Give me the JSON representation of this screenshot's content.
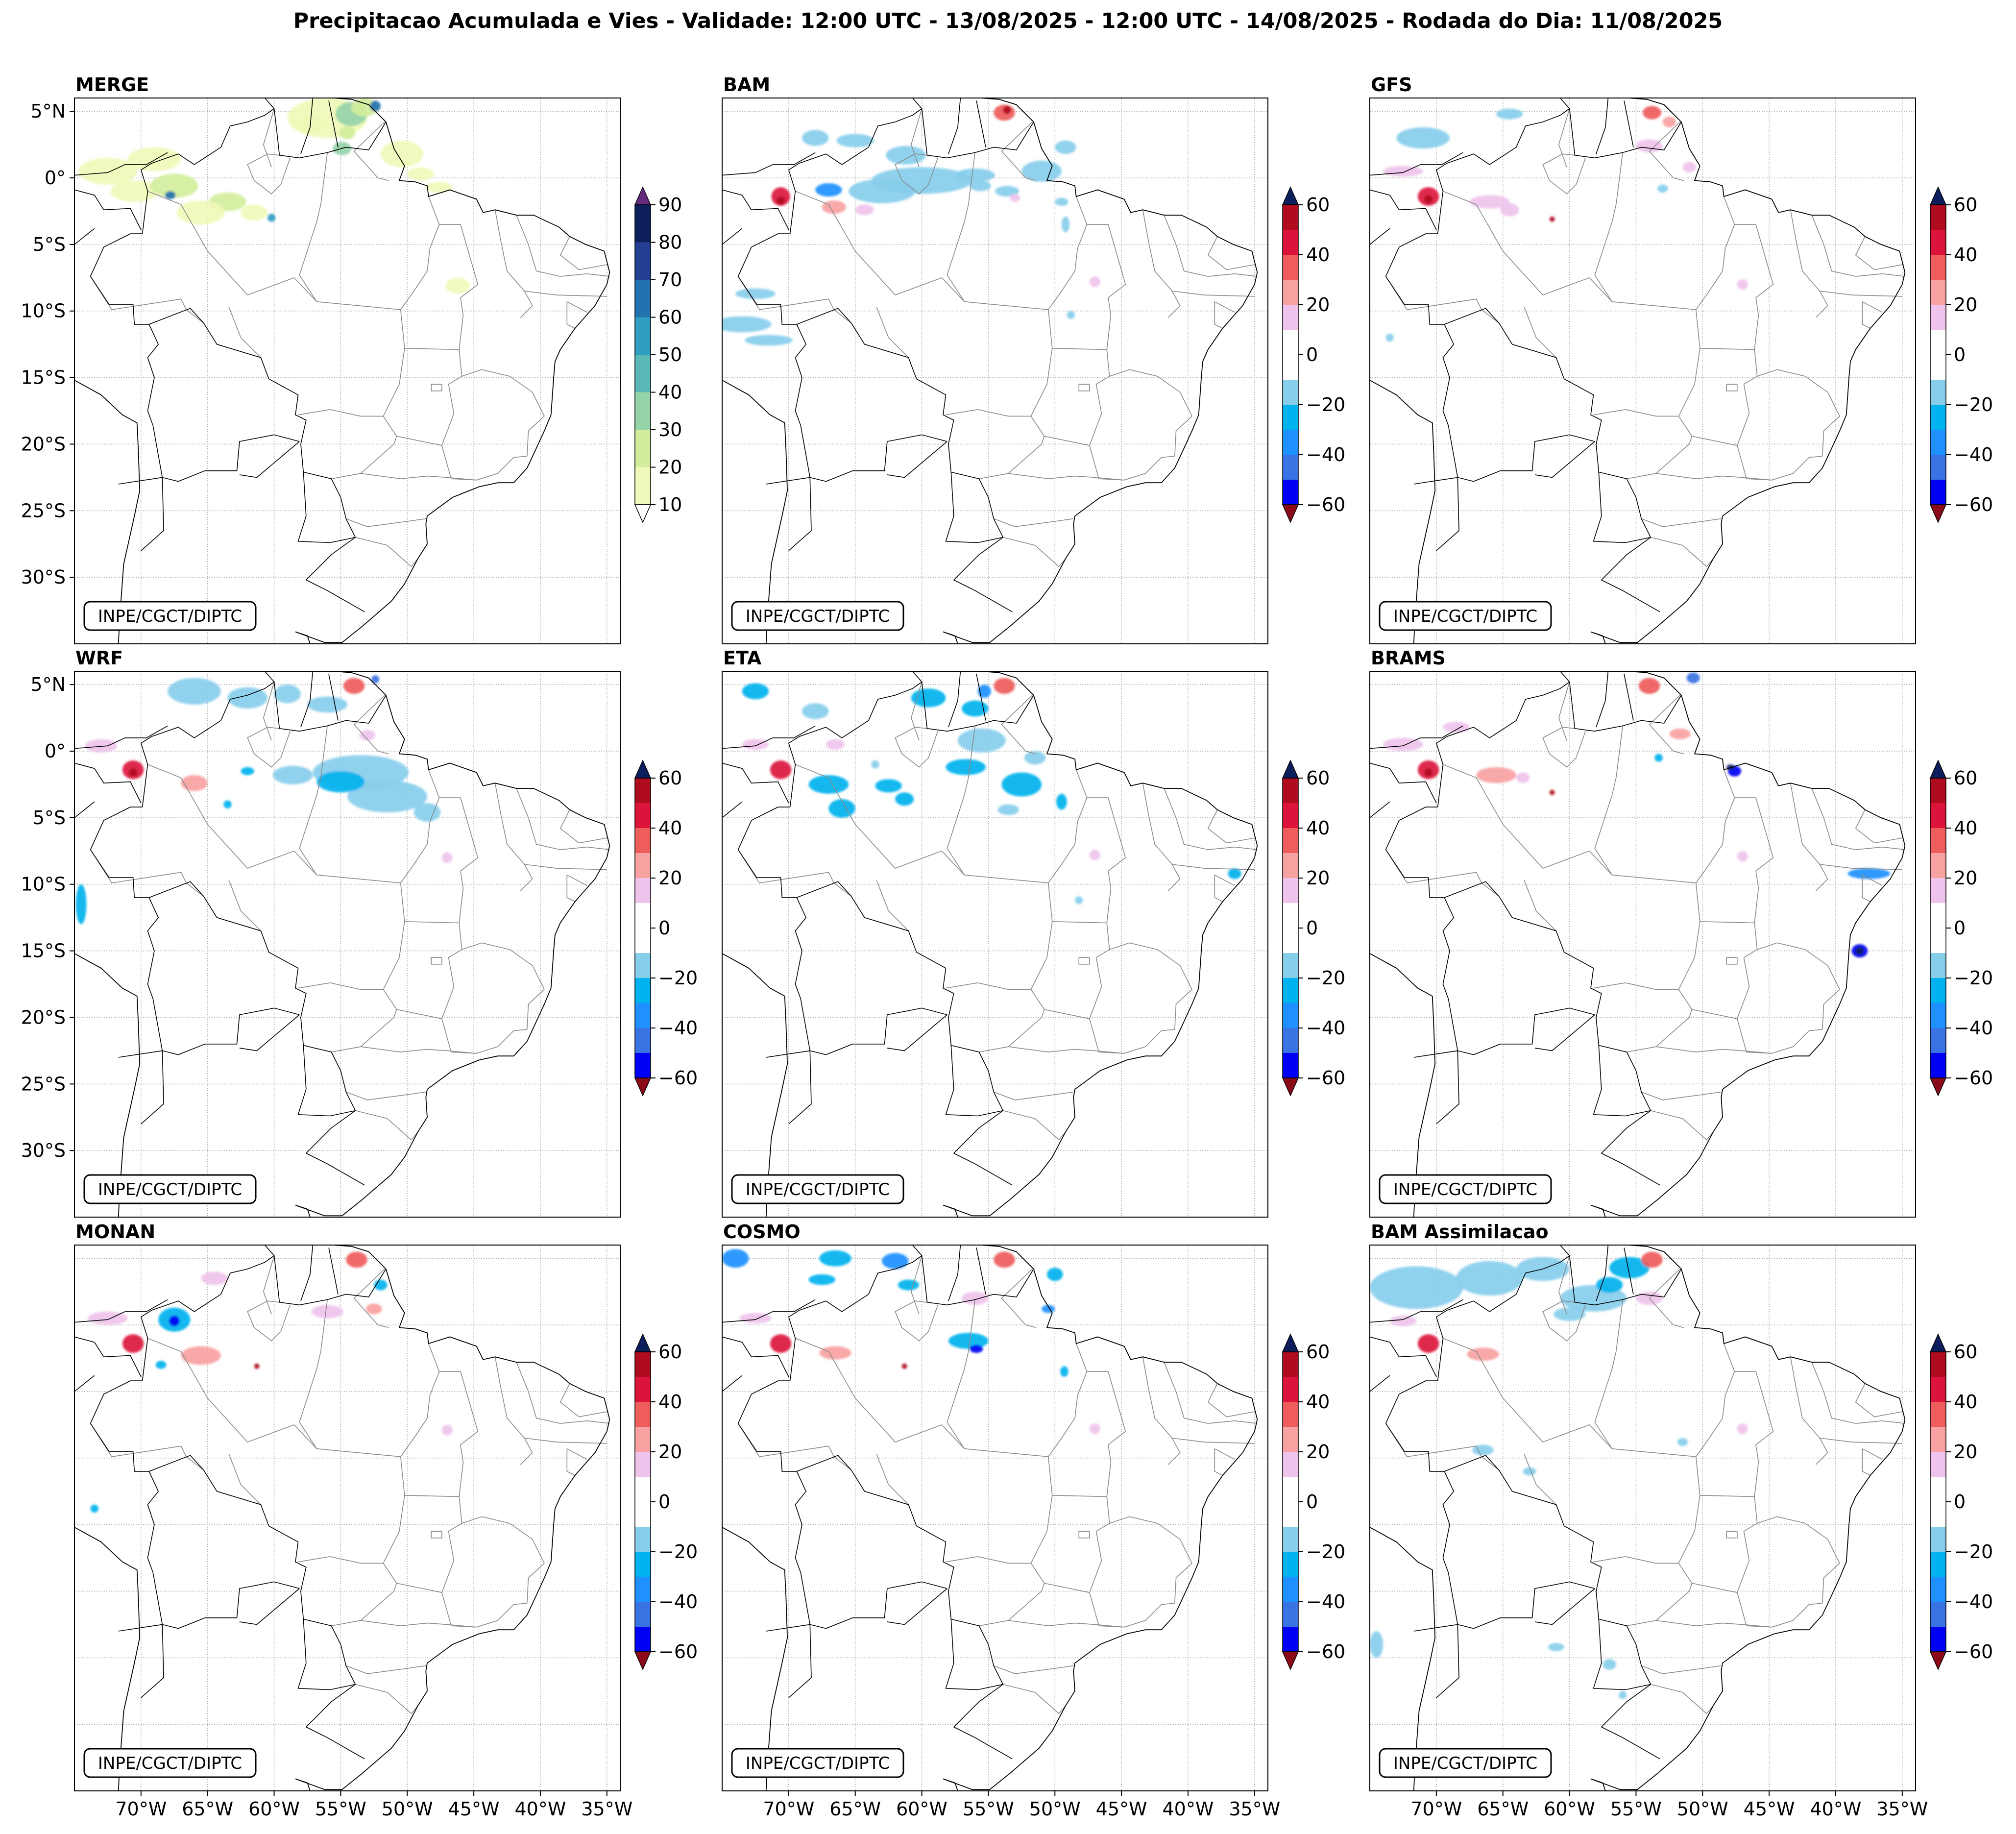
{
  "figure": {
    "title": "Precipitacao Acumulada e Vies - Validade: 12:00 UTC - 13/08/2025 - 12:00 UTC - 14/08/2025 - Rodada do Dia: 11/08/2025",
    "credit": "INPE/CGCT/DIPTC",
    "lat_ticks": [
      "5°N",
      "0°",
      "5°S",
      "10°S",
      "15°S",
      "20°S",
      "25°S",
      "30°S"
    ],
    "lon_ticks": [
      "70°W",
      "65°W",
      "60°W",
      "55°W",
      "50°W",
      "45°W",
      "40°W",
      "35°W"
    ]
  },
  "colorbars": {
    "merge": {
      "ticks": [
        "90",
        "80",
        "70",
        "60",
        "50",
        "40",
        "30",
        "20",
        "10"
      ],
      "colors": [
        "#f0f9b9",
        "#d2ee9c",
        "#95d4a9",
        "#5ab9b8",
        "#2f9ec1",
        "#2372b0",
        "#233f94",
        "#0c1f5c"
      ],
      "extend_top": "#662a7f",
      "extend_bottom": "#ffffff"
    },
    "bias": {
      "ticks": [
        "60",
        "40",
        "20",
        "0",
        "−20",
        "−40",
        "−60"
      ],
      "colors": [
        "#0000f5",
        "#3a73e3",
        "#1e90ff",
        "#00b2ee",
        "#87ceeb",
        "#ffffff",
        "#ffffff",
        "#efc3ec",
        "#f8a1a1",
        "#ee5c5c",
        "#dc143c",
        "#b00c1f"
      ],
      "extend_top": "#0c1f5c",
      "extend_bottom": "#8b0a1a"
    }
  },
  "panels": [
    {
      "id": "merge",
      "label": "MERGE",
      "kind": "precip"
    },
    {
      "id": "bam",
      "label": "BAM",
      "kind": "bias"
    },
    {
      "id": "gfs",
      "label": "GFS",
      "kind": "bias"
    },
    {
      "id": "wrf",
      "label": "WRF",
      "kind": "bias"
    },
    {
      "id": "eta",
      "label": "ETA",
      "kind": "bias"
    },
    {
      "id": "brams",
      "label": "BRAMS",
      "kind": "bias"
    },
    {
      "id": "monan",
      "label": "MONAN",
      "kind": "bias"
    },
    {
      "id": "cosmo",
      "label": "COSMO",
      "kind": "bias"
    },
    {
      "id": "bam-assim",
      "label": "BAM Assimilacao",
      "kind": "bias"
    }
  ]
}
